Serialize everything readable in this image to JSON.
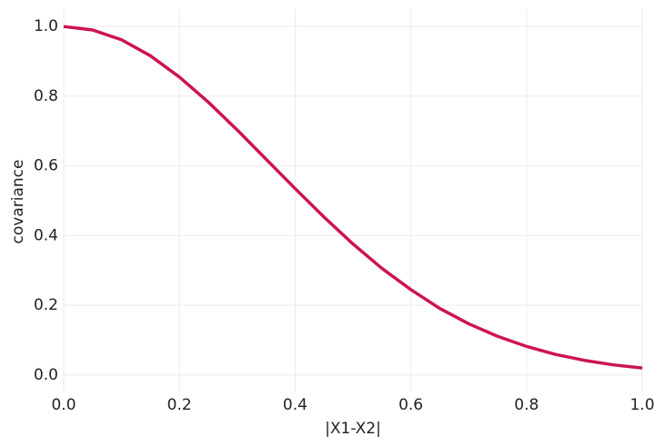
{
  "chart_data": {
    "type": "line",
    "xlabel": "|X1-X2|",
    "ylabel": "covariance",
    "x": [
      0,
      0.05,
      0.1,
      0.15,
      0.2,
      0.25,
      0.3,
      0.35,
      0.4,
      0.45,
      0.5,
      0.55,
      0.6,
      0.65,
      0.7,
      0.75,
      0.8,
      0.85,
      0.9,
      0.95,
      1.0
    ],
    "values": [
      1.0,
      0.99,
      0.962,
      0.916,
      0.855,
      0.783,
      0.703,
      0.619,
      0.535,
      0.453,
      0.376,
      0.306,
      0.245,
      0.191,
      0.147,
      0.111,
      0.082,
      0.059,
      0.042,
      0.029,
      0.02
    ],
    "color": "#cc1452",
    "xlim": [
      0,
      1.0
    ],
    "xticks": [
      {
        "value": 0,
        "label": "0.0"
      },
      0.2,
      0.4,
      0.6,
      0.8,
      {
        "value": 1.0,
        "label": "1.0"
      }
    ],
    "ylim": [
      -0.05,
      1.05
    ],
    "yticks": [
      {
        "value": 0,
        "label": "0.0"
      },
      0.2,
      0.4,
      0.6,
      0.8,
      {
        "value": 1.0,
        "label": "1.0"
      }
    ],
    "grid": true
  }
}
